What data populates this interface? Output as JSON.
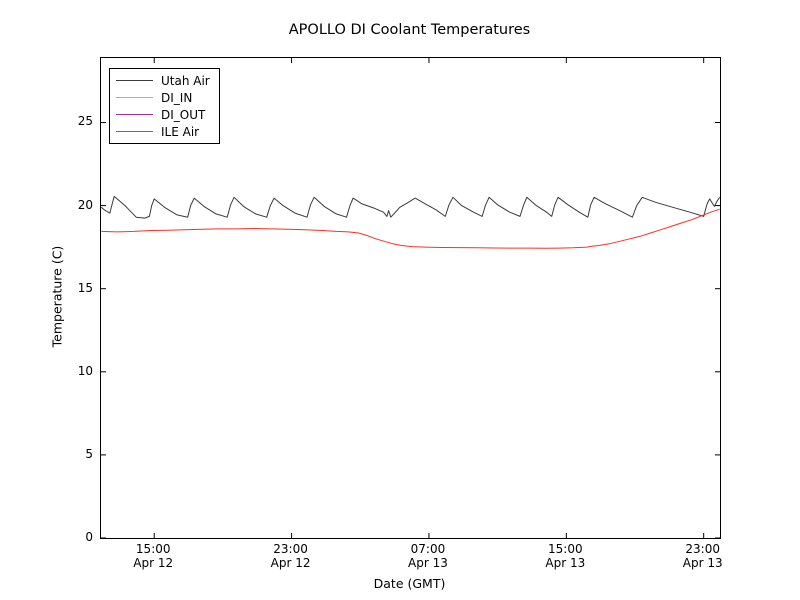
{
  "figure": {
    "background_color": "#ffffff",
    "axis_color": "#000000"
  },
  "chart_data": {
    "type": "line",
    "title": "APOLLO DI Coolant Temperatures",
    "xlabel": "Date (GMT)",
    "ylabel": "Temperature (C)",
    "x_units": "hours since Apr 12 00:00 GMT",
    "xlim": [
      11.9,
      47.95
    ],
    "ylim": [
      0,
      28.88
    ],
    "grid": false,
    "tick_direction": "in",
    "legend_position": "upper left",
    "yticks": [
      0,
      5,
      10,
      15,
      20,
      25
    ],
    "xticks": [
      {
        "value": 15,
        "time": "15:00",
        "date": "Apr 12"
      },
      {
        "value": 23,
        "time": "23:00",
        "date": "Apr 12"
      },
      {
        "value": 31,
        "time": "07:00",
        "date": "Apr 13"
      },
      {
        "value": 39,
        "time": "15:00",
        "date": "Apr 13"
      },
      {
        "value": 47,
        "time": "23:00",
        "date": "Apr 13"
      }
    ],
    "series": [
      {
        "name": "Utah Air",
        "color": "#3a3a3a",
        "points": [
          [
            11.92,
            19.9
          ],
          [
            12.15,
            19.7
          ],
          [
            12.42,
            19.55
          ],
          [
            12.5,
            19.9
          ],
          [
            12.67,
            20.55
          ],
          [
            13.3,
            20.0
          ],
          [
            13.95,
            19.3
          ],
          [
            14.45,
            19.25
          ],
          [
            14.72,
            19.35
          ],
          [
            14.85,
            20.0
          ],
          [
            15.0,
            20.4
          ],
          [
            15.6,
            19.9
          ],
          [
            16.3,
            19.45
          ],
          [
            16.95,
            19.3
          ],
          [
            17.12,
            20.0
          ],
          [
            17.33,
            20.45
          ],
          [
            17.9,
            19.95
          ],
          [
            18.6,
            19.5
          ],
          [
            19.25,
            19.3
          ],
          [
            19.45,
            20.05
          ],
          [
            19.65,
            20.5
          ],
          [
            20.2,
            19.95
          ],
          [
            20.9,
            19.5
          ],
          [
            21.55,
            19.3
          ],
          [
            21.76,
            20.0
          ],
          [
            21.98,
            20.45
          ],
          [
            22.5,
            20.0
          ],
          [
            23.2,
            19.55
          ],
          [
            23.9,
            19.3
          ],
          [
            24.1,
            20.05
          ],
          [
            24.31,
            20.5
          ],
          [
            24.9,
            19.95
          ],
          [
            25.6,
            19.5
          ],
          [
            26.2,
            19.3
          ],
          [
            26.4,
            20.0
          ],
          [
            26.58,
            20.45
          ],
          [
            27.1,
            20.1
          ],
          [
            27.8,
            19.85
          ],
          [
            28.35,
            19.6
          ],
          [
            28.55,
            19.35
          ],
          [
            28.65,
            19.7
          ],
          [
            28.78,
            19.3
          ],
          [
            28.95,
            19.5
          ],
          [
            29.3,
            19.9
          ],
          [
            29.8,
            20.2
          ],
          [
            30.2,
            20.45
          ],
          [
            30.7,
            20.15
          ],
          [
            31.4,
            19.75
          ],
          [
            31.95,
            19.35
          ],
          [
            32.17,
            20.05
          ],
          [
            32.4,
            20.5
          ],
          [
            32.9,
            20.0
          ],
          [
            33.6,
            19.6
          ],
          [
            34.1,
            19.35
          ],
          [
            34.28,
            20.0
          ],
          [
            34.5,
            20.5
          ],
          [
            35.0,
            20.05
          ],
          [
            35.7,
            19.6
          ],
          [
            36.3,
            19.35
          ],
          [
            36.5,
            20.0
          ],
          [
            36.7,
            20.5
          ],
          [
            37.25,
            20.0
          ],
          [
            37.85,
            19.6
          ],
          [
            38.15,
            19.35
          ],
          [
            38.33,
            20.05
          ],
          [
            38.52,
            20.5
          ],
          [
            39.1,
            20.05
          ],
          [
            39.75,
            19.6
          ],
          [
            40.25,
            19.3
          ],
          [
            40.42,
            20.05
          ],
          [
            40.62,
            20.5
          ],
          [
            41.3,
            20.1
          ],
          [
            42.1,
            19.7
          ],
          [
            42.85,
            19.3
          ],
          [
            43.1,
            20.0
          ],
          [
            43.42,
            20.5
          ],
          [
            44.2,
            20.2
          ],
          [
            45.2,
            19.9
          ],
          [
            46.2,
            19.6
          ],
          [
            47.0,
            19.35
          ],
          [
            47.2,
            20.1
          ],
          [
            47.35,
            20.4
          ],
          [
            47.5,
            20.15
          ],
          [
            47.62,
            19.95
          ],
          [
            47.8,
            20.3
          ],
          [
            47.93,
            20.5
          ]
        ]
      },
      {
        "name": "DI_IN",
        "color": "#ffa500",
        "points": []
      },
      {
        "name": "DI_OUT",
        "color": "#993399",
        "points": []
      },
      {
        "name": "ILE Air",
        "color": "#f5322a",
        "points": [
          [
            11.92,
            18.45
          ],
          [
            12.8,
            18.42
          ],
          [
            13.8,
            18.45
          ],
          [
            14.8,
            18.5
          ],
          [
            15.8,
            18.52
          ],
          [
            16.8,
            18.55
          ],
          [
            17.8,
            18.58
          ],
          [
            18.8,
            18.6
          ],
          [
            19.8,
            18.6
          ],
          [
            20.8,
            18.62
          ],
          [
            21.8,
            18.6
          ],
          [
            22.8,
            18.58
          ],
          [
            23.8,
            18.55
          ],
          [
            24.8,
            18.5
          ],
          [
            25.6,
            18.45
          ],
          [
            26.3,
            18.42
          ],
          [
            26.9,
            18.35
          ],
          [
            27.4,
            18.2
          ],
          [
            27.9,
            18.0
          ],
          [
            28.4,
            17.85
          ],
          [
            28.9,
            17.7
          ],
          [
            29.4,
            17.6
          ],
          [
            30.0,
            17.53
          ],
          [
            30.8,
            17.5
          ],
          [
            31.8,
            17.48
          ],
          [
            32.8,
            17.47
          ],
          [
            33.8,
            17.46
          ],
          [
            34.8,
            17.45
          ],
          [
            35.8,
            17.44
          ],
          [
            36.8,
            17.44
          ],
          [
            37.8,
            17.43
          ],
          [
            38.6,
            17.44
          ],
          [
            39.4,
            17.46
          ],
          [
            40.2,
            17.5
          ],
          [
            40.55,
            17.56
          ],
          [
            40.9,
            17.6
          ],
          [
            41.5,
            17.7
          ],
          [
            42.1,
            17.85
          ],
          [
            42.7,
            18.0
          ],
          [
            43.3,
            18.15
          ],
          [
            43.9,
            18.35
          ],
          [
            44.5,
            18.55
          ],
          [
            45.1,
            18.75
          ],
          [
            45.7,
            18.95
          ],
          [
            46.3,
            19.15
          ],
          [
            46.9,
            19.4
          ],
          [
            47.4,
            19.6
          ],
          [
            47.93,
            19.78
          ]
        ]
      }
    ]
  }
}
